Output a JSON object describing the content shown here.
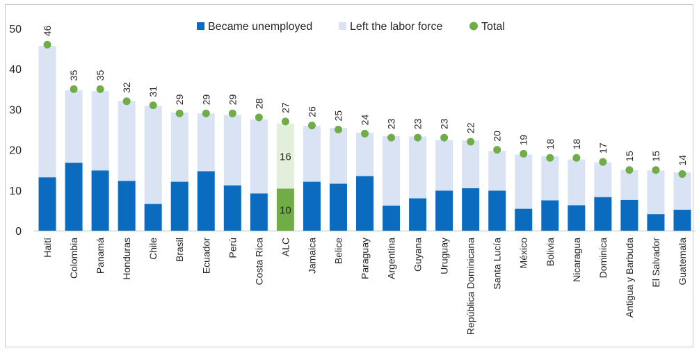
{
  "chart_data": {
    "type": "bar",
    "stacked": true,
    "categories": [
      "Haití",
      "Colombia",
      "Panamá",
      "Honduras",
      "Chile",
      "Brasil",
      "Ecuador",
      "Perú",
      "Costa Rica",
      "ALC",
      "Jamaica",
      "Belice",
      "Paraguay",
      "Argentina",
      "Guyana",
      "Uruguay",
      "República Dominicana",
      "Santa Lucía",
      "México",
      "Bolivia",
      "Nicaragua",
      "Dominica",
      "Antigua y Barbuda",
      "El Salvador",
      "Guatemala"
    ],
    "series": [
      {
        "name": "Became unemployed",
        "color": "#0b6cbf",
        "values": [
          13.2,
          16.8,
          14.9,
          12.3,
          6.6,
          12.1,
          14.7,
          11.2,
          9.2,
          10.4,
          12.1,
          11.6,
          13.5,
          6.2,
          8.0,
          9.9,
          10.5,
          9.9,
          5.4,
          7.5,
          6.3,
          8.3,
          7.6,
          4.1,
          5.2
        ]
      },
      {
        "name": "Left the labor force",
        "color": "#dae3f3",
        "values": [
          32.5,
          17.9,
          19.6,
          19.8,
          24.3,
          17.1,
          14.3,
          17.4,
          18.3,
          16.1,
          13.8,
          13.8,
          10.7,
          17.2,
          15.3,
          12.5,
          11.8,
          9.8,
          13.4,
          10.9,
          11.3,
          8.6,
          7.4,
          10.8,
          9.2
        ]
      }
    ],
    "totals": {
      "name": "Total",
      "color": "#70ad47",
      "values": [
        46,
        35,
        35,
        32,
        31,
        29,
        29,
        29,
        28,
        27,
        26,
        25,
        24,
        23,
        23,
        23,
        22,
        20,
        19,
        18,
        18,
        17,
        15,
        15,
        14
      ]
    },
    "highlight": {
      "category": "ALC",
      "unemployed_color": "#70ad47",
      "left_color": "#e2efda",
      "unemployed_label": "10",
      "left_label": "16"
    },
    "yticks": [
      0,
      10,
      20,
      30,
      40,
      50
    ],
    "ylim": [
      0,
      50
    ],
    "grid": false,
    "legend_position": "top"
  }
}
